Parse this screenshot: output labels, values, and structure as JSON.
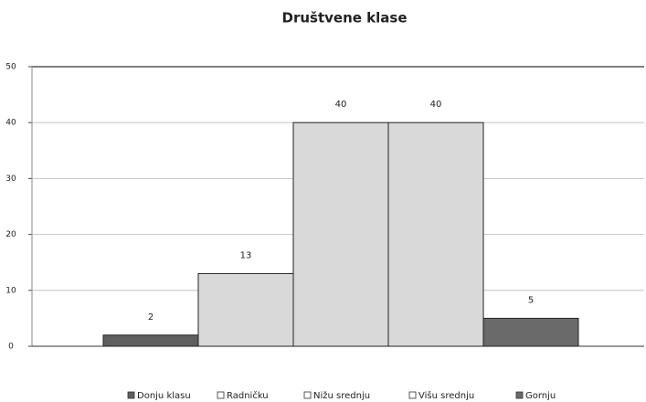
{
  "chart_data": {
    "type": "bar",
    "title": "Društvene klase",
    "categories": [
      "Donju klasu",
      "Radničku",
      "Nižu srednju",
      "Višu srednju",
      "Gornju"
    ],
    "values": [
      2,
      13,
      40,
      40,
      5
    ],
    "colors": [
      "#5f5f5f",
      "#d9d9d9",
      "#d9d9d9",
      "#d9d9d9",
      "#6a6a6a"
    ],
    "ylim": [
      0,
      50
    ],
    "yticks": [
      0,
      10,
      20,
      30,
      40,
      50
    ],
    "grid": true,
    "legend": "bottom"
  }
}
